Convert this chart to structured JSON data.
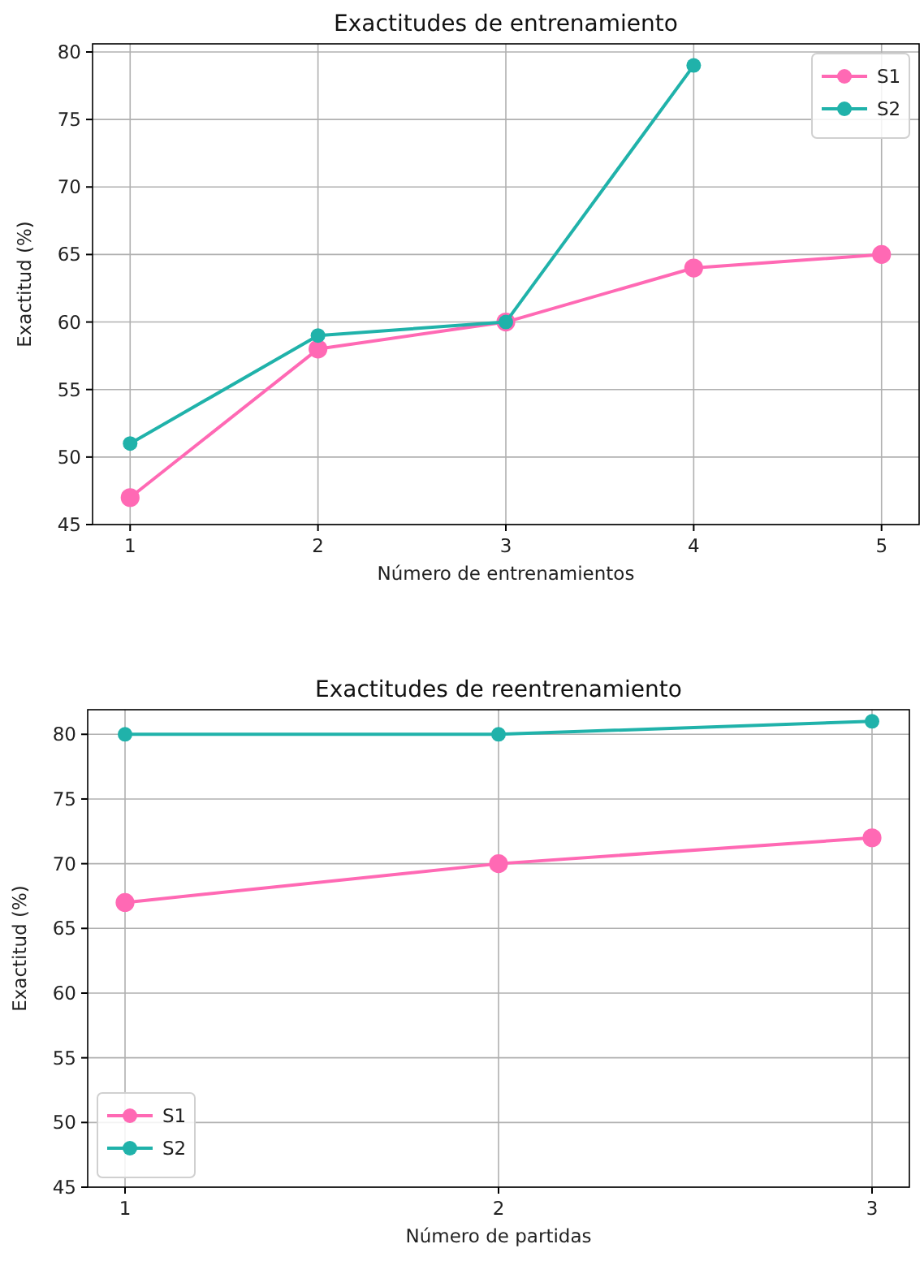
{
  "chart_data": [
    {
      "type": "line",
      "title": "Exactitudes de entrenamiento",
      "xlabel": "Número de entrenamientos",
      "ylabel": "Exactitud (%)",
      "x": [
        1,
        2,
        3,
        4,
        5
      ],
      "xlim": [
        0.8,
        5.2
      ],
      "xticks": [
        1,
        2,
        3,
        4,
        5
      ],
      "ylim": [
        45,
        80.6
      ],
      "yticks": [
        45,
        50,
        55,
        60,
        65,
        70,
        75,
        80
      ],
      "grid": true,
      "legend": "top right",
      "marker": "circle",
      "line_style": "solid",
      "series": [
        {
          "name": "S1",
          "color": "#ff69b4",
          "values": [
            47,
            58,
            60,
            64,
            65
          ]
        },
        {
          "name": "S2",
          "color": "#20b2aa",
          "values": [
            51,
            59,
            60,
            79,
            null
          ]
        }
      ]
    },
    {
      "type": "line",
      "title": "Exactitudes de reentrenamiento",
      "xlabel": "Número de partidas",
      "ylabel": "Exactitud (%)",
      "x": [
        1,
        2,
        3
      ],
      "xlim": [
        0.9,
        3.1
      ],
      "xticks": [
        1,
        2,
        3
      ],
      "ylim": [
        45,
        81.9
      ],
      "yticks": [
        45,
        50,
        55,
        60,
        65,
        70,
        75,
        80
      ],
      "grid": true,
      "legend": "bottom left",
      "marker": "circle",
      "line_style": "solid",
      "series": [
        {
          "name": "S1",
          "color": "#ff69b4",
          "values": [
            67,
            70,
            72
          ]
        },
        {
          "name": "S2",
          "color": "#20b2aa",
          "values": [
            80,
            80,
            81
          ]
        }
      ]
    }
  ]
}
